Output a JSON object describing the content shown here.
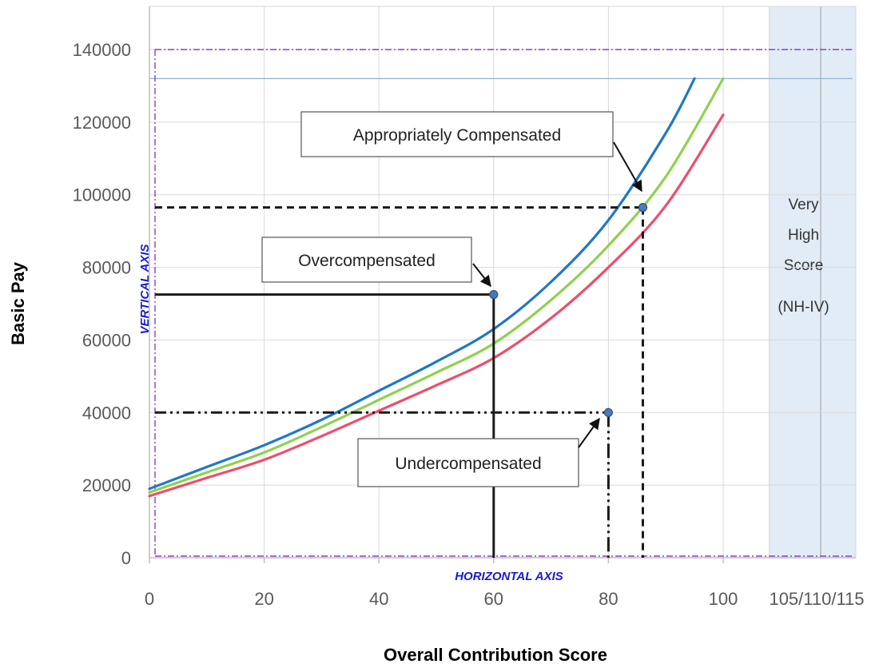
{
  "chart_data": {
    "type": "line",
    "xlabel": "Overall Contribution Score",
    "ylabel": "Basic Pay",
    "x_ticks": [
      "0",
      "20",
      "40",
      "60",
      "80",
      "100",
      "105/110/115"
    ],
    "y_ticks": [
      "0",
      "20000",
      "40000",
      "60000",
      "80000",
      "100000",
      "120000",
      "140000"
    ],
    "xlim": [
      0,
      120
    ],
    "ylim": [
      0,
      140000
    ],
    "grid": true,
    "series": [
      {
        "color": "#1f77c8",
        "x": [
          0,
          10,
          20,
          30,
          40,
          50,
          60,
          70,
          80,
          90,
          95
        ],
        "y": [
          19000,
          25000,
          31000,
          38000,
          46000,
          54000,
          63000,
          76000,
          93000,
          117000,
          132000
        ]
      },
      {
        "color": "#8fd14f",
        "x": [
          0,
          10,
          20,
          30,
          40,
          50,
          60,
          70,
          80,
          90,
          100
        ],
        "y": [
          18000,
          23500,
          29000,
          36000,
          43500,
          51000,
          59000,
          71000,
          86000,
          105000,
          132000
        ]
      },
      {
        "color": "#ee4d6c",
        "x": [
          0,
          10,
          20,
          30,
          40,
          50,
          60,
          70,
          80,
          90,
          100
        ],
        "y": [
          17000,
          22000,
          27000,
          33500,
          40500,
          47500,
          55000,
          66000,
          80000,
          97000,
          122000
        ]
      }
    ],
    "points": [
      {
        "label": "Appropriately Compensated",
        "x": 86,
        "y": 96500,
        "line_style": "dashed"
      },
      {
        "label": "Overcompensated",
        "x": 60,
        "y": 72500,
        "line_style": "solid"
      },
      {
        "label": "Undercompensated",
        "x": 80,
        "y": 40000,
        "line_style": "dash-dot"
      }
    ],
    "reference_line_y": 132000,
    "band": {
      "x_start": 108,
      "x_end": 120,
      "lines": [
        "Very",
        "High",
        "Score",
        "(NH-IV)"
      ]
    },
    "annotations": {
      "vertical_axis": "VERTICAL AXIS",
      "horizontal_axis": "HORIZONTAL AXIS"
    }
  }
}
